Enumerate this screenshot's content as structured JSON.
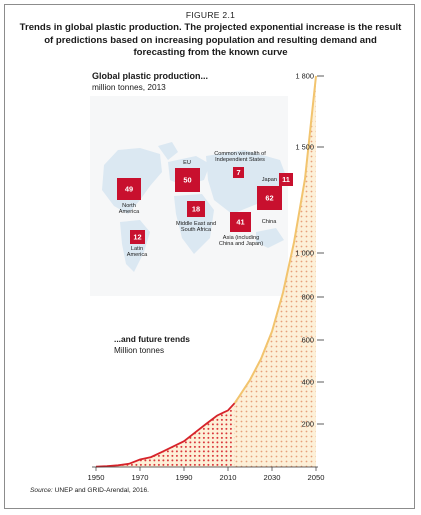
{
  "figure": {
    "label": "FIGURE 2.1",
    "title": "Trends in global plastic production. The projected exponential increase is the result of predictions based on increasing population and resulting demand and forecasting from the known curve",
    "source_prefix": "Source:",
    "source_text": " UNEP and GRID-Arendal, 2016."
  },
  "colors": {
    "curve": "#f2c46e",
    "fill_light": "#fbe3b8",
    "historic": "#d6232a",
    "dots": "#e1342c",
    "box": "#c8102e",
    "map": "#dbe8f2",
    "map_bg": "#f6f7f8"
  },
  "chart_data": {
    "type": "area",
    "inset_title": "Global plastic production...",
    "inset_unit": "million tonnes, 2013",
    "future_title": "...and future trends",
    "future_unit": "Million tonnes",
    "x_ticks": [
      "1950",
      "1970",
      "1990",
      "2010",
      "2030",
      "2050"
    ],
    "y_ticks": [
      "200",
      "400",
      "600",
      "800",
      "1 000",
      "1 500",
      "1 800"
    ],
    "xlim": [
      1950,
      2050
    ],
    "historic_series": {
      "x": [
        1950,
        1955,
        1960,
        1965,
        1970,
        1975,
        1980,
        1985,
        1990,
        1995,
        2000,
        2005,
        2008,
        2010,
        2013
      ],
      "y": [
        2,
        4,
        8,
        15,
        35,
        46,
        70,
        95,
        120,
        160,
        200,
        240,
        255,
        265,
        299
      ]
    },
    "projected_series": {
      "x": [
        2013,
        2015,
        2020,
        2025,
        2030,
        2035,
        2040,
        2045,
        2050
      ],
      "y": [
        299,
        330,
        410,
        510,
        640,
        820,
        1050,
        1350,
        1800
      ]
    },
    "regions": [
      {
        "name": "North America",
        "label": "North\nAmerica",
        "value": "49"
      },
      {
        "name": "EU",
        "label": "EU",
        "value": "50"
      },
      {
        "name": "Common werealth of Independient States",
        "label": "Common werealth of\nIndependient States",
        "value": "7"
      },
      {
        "name": "Japan",
        "label": "Japan",
        "value": "11"
      },
      {
        "name": "Middle East and South Africa",
        "label": "Middle East and\nSouth Africa",
        "value": "18"
      },
      {
        "name": "China",
        "label": "China",
        "value": "62"
      },
      {
        "name": "Asia (including China and Japan)",
        "label": "Asia (including\nChina and Japan)",
        "value": "41"
      },
      {
        "name": "Latin America",
        "label": "Latin\nAmerica",
        "value": "12"
      }
    ]
  }
}
